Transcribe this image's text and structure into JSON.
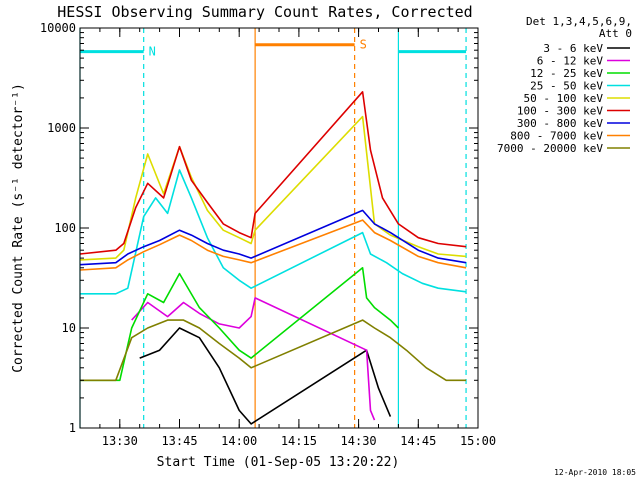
{
  "chart_data": {
    "type": "line",
    "title": "HESSI Observing Summary Count Rates, Corrected",
    "xlabel": "Start Time (01-Sep-05 13:20:22)",
    "ylabel": "Corrected Count Rate (s⁻¹ detector⁻¹)",
    "yscale": "log",
    "xlim": [
      "13:20",
      "15:00"
    ],
    "ylim": [
      1,
      10000
    ],
    "x_ticks": [
      "13:30",
      "13:45",
      "14:00",
      "14:15",
      "14:30",
      "14:45",
      "15:00"
    ],
    "y_ticks": [
      "1",
      "10",
      "100",
      "1000",
      "10000"
    ],
    "legend_header": [
      "Det 1,3,4,5,6,9,",
      "Att 0"
    ],
    "legend_position": "right",
    "grid": false,
    "footer": "12-Apr-2010 18:05",
    "series": [
      {
        "name": "3 - 6 keV",
        "color": "#000000",
        "x": [
          "13:35",
          "13:40",
          "13:45",
          "13:50",
          "13:55",
          "14:00",
          "14:03",
          "14:32",
          "14:35",
          "14:38"
        ],
        "y": [
          5,
          6,
          10,
          8,
          4,
          1.5,
          1.1,
          6,
          2.5,
          1.3
        ]
      },
      {
        "name": "6 - 12 keV",
        "color": "#dd00dd",
        "x": [
          "13:33",
          "13:37",
          "13:42",
          "13:46",
          "13:50",
          "13:55",
          "14:00",
          "14:03",
          "14:04",
          "14:32",
          "14:33",
          "14:34"
        ],
        "y": [
          12,
          18,
          13,
          18,
          14,
          11,
          10,
          13,
          20,
          6,
          1.5,
          1.2
        ]
      },
      {
        "name": "12 - 25 keV",
        "color": "#00dd00",
        "x": [
          "13:20",
          "13:30",
          "13:33",
          "13:37",
          "13:41",
          "13:45",
          "13:50",
          "13:55",
          "14:00",
          "14:03",
          "14:31",
          "14:32",
          "14:34",
          "14:38",
          "14:40"
        ],
        "y": [
          3,
          3,
          10,
          22,
          18,
          35,
          16,
          10,
          6,
          5,
          40,
          20,
          16,
          12,
          10
        ]
      },
      {
        "name": "25 - 50 keV",
        "color": "#00e0e0",
        "x": [
          "13:20",
          "13:29",
          "13:32",
          "13:36",
          "13:39",
          "13:42",
          "13:45",
          "13:48",
          "13:52",
          "13:56",
          "14:00",
          "14:03",
          "14:31",
          "14:33",
          "14:37",
          "14:41",
          "14:46",
          "14:50",
          "14:57"
        ],
        "y": [
          22,
          22,
          25,
          130,
          200,
          140,
          380,
          200,
          80,
          40,
          30,
          25,
          90,
          55,
          45,
          35,
          28,
          25,
          23
        ]
      },
      {
        "name": "50 - 100 keV",
        "color": "#dddd00",
        "x": [
          "13:20",
          "13:29",
          "13:31",
          "13:34",
          "13:37",
          "13:41",
          "13:45",
          "13:48",
          "13:52",
          "13:56",
          "14:00",
          "14:03",
          "14:04",
          "14:31",
          "14:34",
          "14:38",
          "14:45",
          "14:50",
          "14:57"
        ],
        "y": [
          48,
          50,
          60,
          200,
          550,
          220,
          650,
          320,
          150,
          95,
          80,
          70,
          95,
          1300,
          110,
          85,
          65,
          55,
          52
        ]
      },
      {
        "name": "100 - 300 keV",
        "color": "#dd0000",
        "x": [
          "13:20",
          "13:29",
          "13:31",
          "13:34",
          "13:37",
          "13:41",
          "13:45",
          "13:48",
          "13:52",
          "13:56",
          "14:00",
          "14:03",
          "14:04",
          "14:31",
          "14:33",
          "14:36",
          "14:40",
          "14:45",
          "14:50",
          "14:57"
        ],
        "y": [
          55,
          60,
          70,
          160,
          280,
          200,
          650,
          300,
          180,
          110,
          90,
          80,
          140,
          2300,
          600,
          200,
          110,
          80,
          70,
          65
        ]
      },
      {
        "name": "300 - 800 keV",
        "color": "#0000dd",
        "x": [
          "13:20",
          "13:29",
          "13:32",
          "13:36",
          "13:40",
          "13:45",
          "13:48",
          "13:52",
          "13:56",
          "14:00",
          "14:03",
          "14:31",
          "14:34",
          "14:38",
          "14:45",
          "14:50",
          "14:57"
        ],
        "y": [
          43,
          45,
          55,
          65,
          75,
          95,
          85,
          70,
          60,
          55,
          50,
          150,
          110,
          90,
          60,
          50,
          45
        ]
      },
      {
        "name": "800 - 7000 keV",
        "color": "#ff8000",
        "x": [
          "13:20",
          "13:29",
          "13:32",
          "13:36",
          "13:40",
          "13:45",
          "13:48",
          "13:52",
          "13:56",
          "14:00",
          "14:03",
          "14:31",
          "14:34",
          "14:38",
          "14:45",
          "14:50",
          "14:57"
        ],
        "y": [
          38,
          40,
          48,
          58,
          68,
          85,
          75,
          60,
          52,
          48,
          45,
          120,
          90,
          75,
          52,
          45,
          40
        ]
      },
      {
        "name": "7000 - 20000 keV",
        "color": "#808000",
        "x": [
          "13:20",
          "13:29",
          "13:33",
          "13:37",
          "13:42",
          "13:46",
          "13:50",
          "13:55",
          "14:00",
          "14:03",
          "14:31",
          "14:34",
          "14:38",
          "14:42",
          "14:47",
          "14:52",
          "14:57"
        ],
        "y": [
          3,
          3,
          8,
          10,
          12,
          12,
          10,
          7,
          5,
          4,
          12,
          10,
          8,
          6,
          4,
          3,
          3
        ]
      }
    ],
    "annotations": [
      {
        "label": "N",
        "color": "#00e0e0",
        "level": 5800,
        "start": "13:20",
        "end": "13:36"
      },
      {
        "label": "",
        "color": "#00e0e0",
        "level": 5800,
        "start": "14:40",
        "end": "14:57"
      },
      {
        "label": "S",
        "color": "#ff8000",
        "level": 6800,
        "start": "14:04",
        "end": "14:29"
      }
    ],
    "vertical_markers": [
      {
        "x": "13:20",
        "color": "#00e0e0",
        "style": "solid"
      },
      {
        "x": "13:36",
        "color": "#00e0e0",
        "style": "dashed"
      },
      {
        "x": "14:04",
        "color": "#ff8000",
        "style": "solid"
      },
      {
        "x": "14:29",
        "color": "#ff8000",
        "style": "dashed"
      },
      {
        "x": "14:40",
        "color": "#00e0e0",
        "style": "solid"
      },
      {
        "x": "14:57",
        "color": "#00e0e0",
        "style": "dashed"
      }
    ]
  }
}
